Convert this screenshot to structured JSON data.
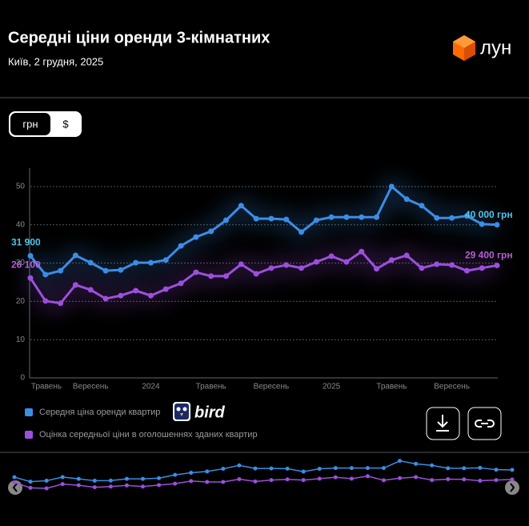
{
  "header": {
    "title": "Середні ціни оренди 3-кімнатних",
    "subtitle": "Київ, 2 грудня, 2025",
    "logo": "лун"
  },
  "controls": {
    "currency": [
      "грн",
      "$"
    ]
  },
  "brand": "bird",
  "chart_data": {
    "type": "line",
    "categories": [
      "Травень",
      null,
      null,
      null,
      "Вересень",
      null,
      null,
      null,
      "2024",
      null,
      null,
      null,
      "Травень",
      null,
      null,
      null,
      "Вересень",
      null,
      null,
      null,
      "2025",
      null,
      null,
      null,
      "Травень",
      null,
      null,
      null,
      "Вересень",
      null,
      null,
      null
    ],
    "series": [
      {
        "name": "Середня ціна оренди квартир",
        "color": "#3a8ee6",
        "label_color": "#4fc3e8",
        "values": [
          31.9,
          27,
          28,
          32,
          30.1,
          28,
          28.2,
          30.1,
          30.1,
          30.8,
          34.5,
          36.8,
          38.3,
          41.2,
          45,
          41.6,
          41.6,
          41.4,
          38.1,
          41.2,
          42,
          42,
          42,
          42,
          50,
          46.7,
          45,
          41.8,
          41.8,
          42.3,
          40.2,
          40
        ],
        "value_labels": [
          "31 900",
          null,
          null,
          null,
          null,
          null,
          null,
          null,
          null,
          null,
          null,
          null,
          null,
          null,
          null,
          null,
          null,
          null,
          null,
          null,
          null,
          null,
          null,
          null,
          null,
          null,
          null,
          null,
          null,
          null,
          null,
          "40 000 грн"
        ]
      },
      {
        "name": "Оцінка середньої ціни в оголошеннях зданих квартир",
        "color": "#9c4fdc",
        "label_color": "#b35ed6",
        "values": [
          26.1,
          20.1,
          19.5,
          24.3,
          23,
          20.7,
          21.5,
          22.8,
          21.5,
          23.2,
          24.7,
          27.6,
          26.6,
          26.6,
          29.7,
          27.2,
          28.7,
          29.5,
          28.7,
          30.3,
          31.8,
          30.3,
          33,
          28.5,
          30.8,
          32,
          28.7,
          29.7,
          29.5,
          28,
          28.7,
          29.4
        ],
        "value_labels": [
          "26 100",
          null,
          null,
          null,
          null,
          null,
          null,
          null,
          null,
          null,
          null,
          null,
          null,
          null,
          null,
          null,
          null,
          null,
          null,
          null,
          null,
          null,
          null,
          null,
          null,
          null,
          null,
          null,
          null,
          null,
          null,
          "29 400 грн"
        ]
      }
    ],
    "ylim": [
      0,
      55
    ],
    "yticks": [
      0,
      10,
      20,
      30,
      40,
      50
    ],
    "grid": true
  }
}
